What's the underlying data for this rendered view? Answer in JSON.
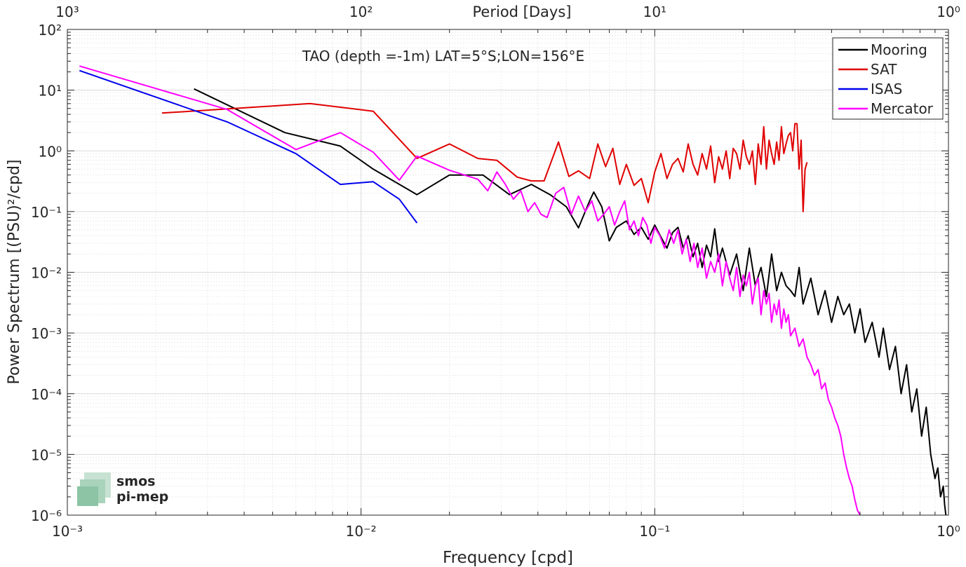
{
  "chart_data": {
    "type": "line",
    "title": "TAO (depth =-1m) LAT=5°S;LON=156°E",
    "xlabel": "Frequency [cpd]",
    "ylabel": "Power Spectrum [(PSU)²/cpd]",
    "top_axis_label": "Period [Days]",
    "x_scale": "log",
    "y_scale": "log",
    "xlim": [
      0.001,
      1
    ],
    "ylim": [
      1e-06,
      100
    ],
    "x_ticks": [
      {
        "value": 0.001,
        "label": "10⁻³"
      },
      {
        "value": 0.01,
        "label": "10⁻²"
      },
      {
        "value": 0.1,
        "label": "10⁻¹"
      },
      {
        "value": 1,
        "label": "10⁰"
      }
    ],
    "top_ticks": [
      {
        "value": 0.001,
        "label": "10³"
      },
      {
        "value": 0.01,
        "label": "10²"
      },
      {
        "value": 0.1,
        "label": "10¹"
      },
      {
        "value": 1,
        "label": "10⁰"
      }
    ],
    "y_ticks": [
      {
        "value": 1e-06,
        "label": "10⁻⁶"
      },
      {
        "value": 1e-05,
        "label": "10⁻⁵"
      },
      {
        "value": 0.0001,
        "label": "10⁻⁴"
      },
      {
        "value": 0.001,
        "label": "10⁻³"
      },
      {
        "value": 0.01,
        "label": "10⁻²"
      },
      {
        "value": 0.1,
        "label": "10⁻¹"
      },
      {
        "value": 1,
        "label": "10⁰"
      },
      {
        "value": 10,
        "label": "10¹"
      },
      {
        "value": 100,
        "label": "10²"
      }
    ],
    "grid": true,
    "legend_position": "top-right",
    "series": [
      {
        "name": "Mooring",
        "color": "#000000",
        "x": [
          0.0027,
          0.0055,
          0.0085,
          0.011,
          0.0155,
          0.02,
          0.026,
          0.032,
          0.038,
          0.044,
          0.05,
          0.055,
          0.06,
          0.062,
          0.066,
          0.07,
          0.074,
          0.08,
          0.085,
          0.09,
          0.095,
          0.1,
          0.105,
          0.11,
          0.115,
          0.12,
          0.125,
          0.13,
          0.135,
          0.14,
          0.145,
          0.15,
          0.155,
          0.16,
          0.165,
          0.17,
          0.18,
          0.19,
          0.2,
          0.21,
          0.22,
          0.23,
          0.24,
          0.25,
          0.26,
          0.27,
          0.28,
          0.29,
          0.3,
          0.31,
          0.32,
          0.34,
          0.36,
          0.38,
          0.4,
          0.42,
          0.44,
          0.46,
          0.48,
          0.5,
          0.52,
          0.55,
          0.58,
          0.6,
          0.63,
          0.66,
          0.69,
          0.72,
          0.75,
          0.78,
          0.81,
          0.84,
          0.87,
          0.9,
          0.92,
          0.94,
          0.96,
          0.97,
          0.98
        ],
        "y": [
          10.5,
          2.0,
          1.2,
          0.5,
          0.19,
          0.4,
          0.4,
          0.19,
          0.28,
          0.19,
          0.12,
          0.054,
          0.15,
          0.21,
          0.12,
          0.033,
          0.055,
          0.07,
          0.042,
          0.055,
          0.035,
          0.06,
          0.038,
          0.025,
          0.045,
          0.055,
          0.025,
          0.04,
          0.018,
          0.03,
          0.012,
          0.028,
          0.018,
          0.052,
          0.015,
          0.025,
          0.009,
          0.02,
          0.005,
          0.025,
          0.006,
          0.012,
          0.004,
          0.02,
          0.005,
          0.01,
          0.006,
          0.005,
          0.004,
          0.012,
          0.003,
          0.008,
          0.002,
          0.005,
          0.0015,
          0.004,
          0.002,
          0.003,
          0.001,
          0.0025,
          0.0007,
          0.0015,
          0.0004,
          0.0012,
          0.00025,
          0.0006,
          0.0001,
          0.0003,
          5e-05,
          0.00012,
          2e-05,
          6e-05,
          1e-05,
          4e-06,
          6e-06,
          2e-06,
          3e-06,
          1.5e-06,
          1e-06
        ]
      },
      {
        "name": "SAT",
        "color": "#e00000",
        "x": [
          0.0021,
          0.0067,
          0.011,
          0.0155,
          0.02,
          0.025,
          0.029,
          0.034,
          0.038,
          0.042,
          0.047,
          0.051,
          0.055,
          0.06,
          0.064,
          0.068,
          0.072,
          0.076,
          0.08,
          0.085,
          0.09,
          0.095,
          0.1,
          0.105,
          0.11,
          0.115,
          0.12,
          0.125,
          0.13,
          0.135,
          0.14,
          0.145,
          0.15,
          0.155,
          0.16,
          0.165,
          0.17,
          0.175,
          0.18,
          0.185,
          0.19,
          0.195,
          0.2,
          0.205,
          0.21,
          0.215,
          0.22,
          0.225,
          0.23,
          0.235,
          0.24,
          0.245,
          0.25,
          0.255,
          0.26,
          0.265,
          0.27,
          0.275,
          0.28,
          0.285,
          0.29,
          0.295,
          0.3,
          0.305,
          0.31,
          0.315,
          0.32,
          0.325,
          0.33
        ],
        "y": [
          4.2,
          6.0,
          4.5,
          0.75,
          1.3,
          0.75,
          0.7,
          0.37,
          0.32,
          0.32,
          1.4,
          0.38,
          0.47,
          0.35,
          1.3,
          0.55,
          1.1,
          0.28,
          0.6,
          0.27,
          0.35,
          0.14,
          0.45,
          0.9,
          0.35,
          0.6,
          0.75,
          0.45,
          1.3,
          0.6,
          0.4,
          0.9,
          0.5,
          1.2,
          0.3,
          0.8,
          0.5,
          1.0,
          0.35,
          1.1,
          0.9,
          0.5,
          1.5,
          0.8,
          0.6,
          1.0,
          0.28,
          1.3,
          0.6,
          2.5,
          0.5,
          1.5,
          0.9,
          0.6,
          1.4,
          0.7,
          2.5,
          0.9,
          1.3,
          1.8,
          2.0,
          1.0,
          2.8,
          2.8,
          0.5,
          1.5,
          0.1,
          0.5,
          0.65
        ]
      },
      {
        "name": "ISAS",
        "color": "#0000ee",
        "x": [
          0.0011,
          0.0035,
          0.006,
          0.0085,
          0.011,
          0.0135,
          0.0155
        ],
        "y": [
          21,
          3.0,
          0.9,
          0.28,
          0.31,
          0.16,
          0.065
        ]
      },
      {
        "name": "Mercator",
        "color": "#ff00ff",
        "x": [
          0.0011,
          0.0035,
          0.006,
          0.0085,
          0.011,
          0.0135,
          0.0155,
          0.02,
          0.025,
          0.027,
          0.029,
          0.031,
          0.033,
          0.035,
          0.037,
          0.039,
          0.041,
          0.043,
          0.046,
          0.049,
          0.052,
          0.055,
          0.058,
          0.061,
          0.064,
          0.067,
          0.07,
          0.073,
          0.076,
          0.079,
          0.082,
          0.085,
          0.088,
          0.091,
          0.094,
          0.097,
          0.1,
          0.104,
          0.108,
          0.112,
          0.116,
          0.12,
          0.124,
          0.128,
          0.132,
          0.136,
          0.14,
          0.145,
          0.15,
          0.155,
          0.16,
          0.165,
          0.17,
          0.175,
          0.18,
          0.185,
          0.19,
          0.195,
          0.2,
          0.205,
          0.21,
          0.215,
          0.22,
          0.225,
          0.23,
          0.235,
          0.24,
          0.245,
          0.25,
          0.255,
          0.26,
          0.265,
          0.27,
          0.275,
          0.28,
          0.285,
          0.29,
          0.3,
          0.31,
          0.32,
          0.33,
          0.34,
          0.35,
          0.36,
          0.37,
          0.38,
          0.39,
          0.4,
          0.41,
          0.42,
          0.43,
          0.44,
          0.45,
          0.46,
          0.47,
          0.48,
          0.49,
          0.5
        ],
        "y": [
          25,
          4.8,
          1.05,
          2.0,
          0.95,
          0.33,
          0.82,
          0.48,
          0.34,
          0.22,
          0.45,
          0.28,
          0.16,
          0.22,
          0.1,
          0.14,
          0.09,
          0.08,
          0.2,
          0.25,
          0.09,
          0.18,
          0.1,
          0.15,
          0.07,
          0.09,
          0.12,
          0.06,
          0.1,
          0.15,
          0.05,
          0.07,
          0.04,
          0.08,
          0.06,
          0.03,
          0.055,
          0.04,
          0.025,
          0.05,
          0.03,
          0.05,
          0.02,
          0.035,
          0.015,
          0.03,
          0.012,
          0.025,
          0.008,
          0.015,
          0.01,
          0.02,
          0.006,
          0.015,
          0.008,
          0.005,
          0.012,
          0.004,
          0.009,
          0.006,
          0.01,
          0.003,
          0.006,
          0.008,
          0.002,
          0.005,
          0.003,
          0.0045,
          0.0015,
          0.003,
          0.002,
          0.0035,
          0.0012,
          0.0025,
          0.0015,
          0.002,
          0.0009,
          0.0012,
          0.0006,
          0.0008,
          0.0004,
          0.0003,
          0.0002,
          0.00025,
          0.00012,
          0.00015,
          8e-05,
          6e-05,
          4e-05,
          3e-05,
          2e-05,
          1e-05,
          6e-06,
          4e-06,
          3e-06,
          1.8e-06,
          1.2e-06,
          1e-06
        ]
      }
    ]
  },
  "logo": {
    "line1": "smos",
    "line2": "pi-mep",
    "color": "#7fb89a"
  }
}
